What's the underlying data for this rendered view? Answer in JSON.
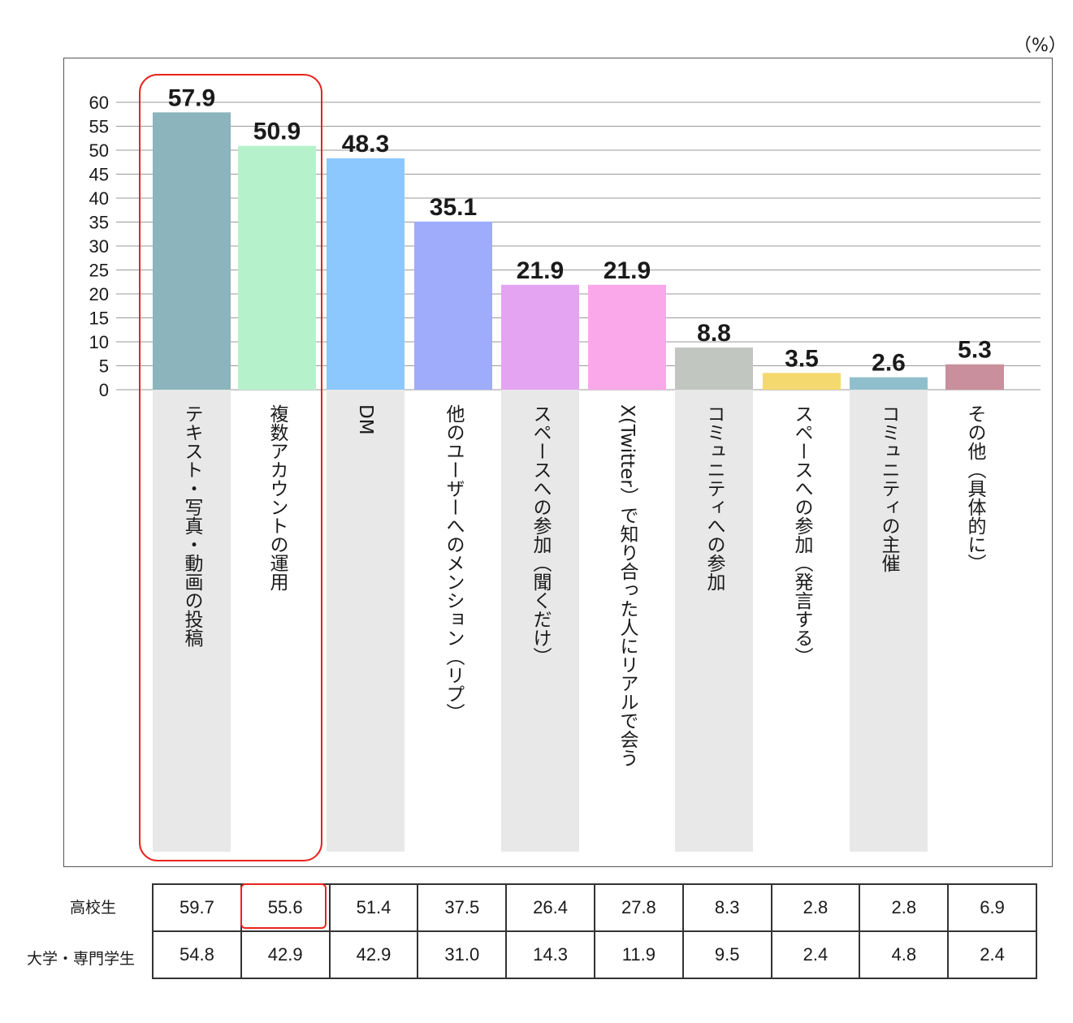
{
  "chart_data": {
    "type": "bar",
    "unit_label": "（%）",
    "categories": [
      "テキスト・写真・動画の投稿",
      "複数アカウントの運用",
      "DM",
      "他のユーザーへのメンション（リプ）",
      "スペースへの参加（聞くだけ）",
      "X(Twitter）で知り合った人にリアルで会う",
      "コミュニティへの参加",
      "スペースへの参加（発言する）",
      "コミュニティの主催",
      "その他（具体的に）"
    ],
    "values": [
      57.9,
      50.9,
      48.3,
      35.1,
      21.9,
      21.9,
      8.8,
      3.5,
      2.6,
      5.3
    ],
    "value_labels": [
      "57.9",
      "50.9",
      "48.3",
      "35.1",
      "21.9",
      "21.9",
      "8.8",
      "3.5",
      "2.6",
      "5.3"
    ],
    "colors": [
      "#8bb4bc",
      "#b5f2cc",
      "#8cc8fd",
      "#9eacfb",
      "#e4a4f1",
      "#fba8ea",
      "#c1c6c1",
      "#f4d96e",
      "#8fbfcc",
      "#c98f9c"
    ],
    "y_ticks": [
      "60",
      "55",
      "50",
      "45",
      "40",
      "35",
      "30",
      "25",
      "20",
      "15",
      "10",
      "5",
      "0"
    ],
    "ylim": [
      0,
      60
    ],
    "grid": true,
    "highlight_categories": [
      0,
      1
    ],
    "table": {
      "rows": [
        {
          "label": "高校生",
          "values": [
            "59.7",
            "55.6",
            "51.4",
            "37.5",
            "26.4",
            "27.8",
            "8.3",
            "2.8",
            "2.8",
            "6.9"
          ]
        },
        {
          "label": "大学・専門学生",
          "values": [
            "54.8",
            "42.9",
            "42.9",
            "31.0",
            "14.3",
            "11.9",
            "9.5",
            "2.4",
            "4.8",
            "2.4"
          ]
        }
      ],
      "highlight_cell": {
        "row": 0,
        "col": 1
      }
    }
  }
}
